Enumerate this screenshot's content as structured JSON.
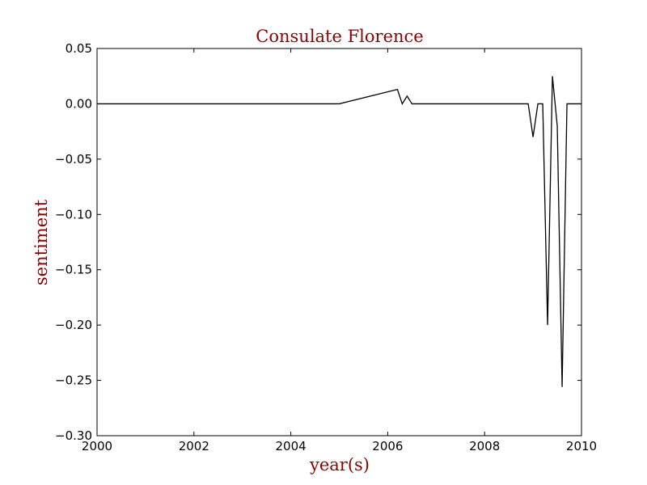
{
  "chart_data": {
    "type": "line",
    "title": "Consulate Florence",
    "xlabel": "year(s)",
    "ylabel": "sentiment",
    "xlim": [
      2000,
      2010
    ],
    "ylim": [
      -0.3,
      0.05
    ],
    "x_ticks": [
      2000,
      2002,
      2004,
      2006,
      2008,
      2010
    ],
    "x_tick_labels": [
      "2000",
      "2002",
      "2004",
      "2006",
      "2008",
      "2010"
    ],
    "y_ticks": [
      0.05,
      0.0,
      -0.05,
      -0.1,
      -0.15,
      -0.2,
      -0.25,
      -0.3
    ],
    "y_tick_labels": [
      "0.05",
      "0.00",
      "−0.05",
      "−0.10",
      "−0.15",
      "−0.20",
      "−0.25",
      "−0.30"
    ],
    "grid": false,
    "colors": {
      "title": "#8b0000",
      "axis_label": "#8b0000",
      "line": "#000000"
    },
    "series": [
      {
        "x": [
          2000.0,
          2005.0,
          2006.2,
          2006.3,
          2006.4,
          2006.5,
          2007.0,
          2008.0,
          2008.9,
          2009.0,
          2009.1,
          2009.2,
          2009.3,
          2009.4,
          2009.5,
          2009.6,
          2009.7,
          2009.8,
          2010.0
        ],
        "y": [
          0.0,
          0.0,
          0.013,
          0.0,
          0.007,
          0.0,
          0.0,
          0.0,
          0.0,
          -0.03,
          0.0,
          0.0,
          -0.2,
          0.025,
          -0.02,
          -0.256,
          0.0,
          0.0,
          0.0
        ]
      }
    ]
  }
}
